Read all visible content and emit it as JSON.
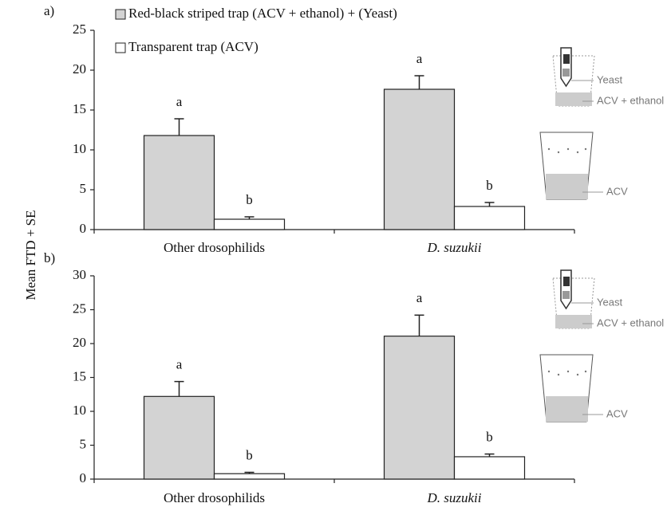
{
  "y_label": "Mean FTD + SE",
  "chart_data": [
    {
      "type": "bar",
      "panel_label": "a)",
      "categories": [
        "Other drosophilids",
        "D. suzukii"
      ],
      "series": [
        {
          "name": "Red-black striped trap (ACV + ethanol) + (Yeast)",
          "color": "#d3d3d3",
          "values": [
            11.8,
            17.6
          ],
          "errors": [
            2.1,
            1.7
          ],
          "letters": [
            "a",
            "a"
          ]
        },
        {
          "name": "Transparent trap (ACV)",
          "color": "#ffffff",
          "values": [
            1.3,
            2.9
          ],
          "errors": [
            0.3,
            0.5
          ],
          "letters": [
            "b",
            "b"
          ]
        }
      ],
      "ylim": [
        0,
        25
      ],
      "yticks": [
        0,
        5,
        10,
        15,
        20,
        25
      ],
      "diagram_labels": [
        "Yeast",
        "ACV + ethanol",
        "ACV"
      ]
    },
    {
      "type": "bar",
      "panel_label": "b)",
      "categories": [
        "Other drosophilids",
        "D. suzukii"
      ],
      "series": [
        {
          "color": "#d3d3d3",
          "values": [
            12.2,
            21.1
          ],
          "errors": [
            2.2,
            3.1
          ],
          "letters": [
            "a",
            "a"
          ]
        },
        {
          "color": "#ffffff",
          "values": [
            0.8,
            3.3
          ],
          "errors": [
            0.2,
            0.4
          ],
          "letters": [
            "b",
            "b"
          ]
        }
      ],
      "ylim": [
        0,
        30
      ],
      "yticks": [
        0,
        5,
        10,
        15,
        20,
        25,
        30
      ],
      "diagram_labels": [
        "Yeast",
        "ACV + ethanol",
        "ACV"
      ]
    }
  ]
}
